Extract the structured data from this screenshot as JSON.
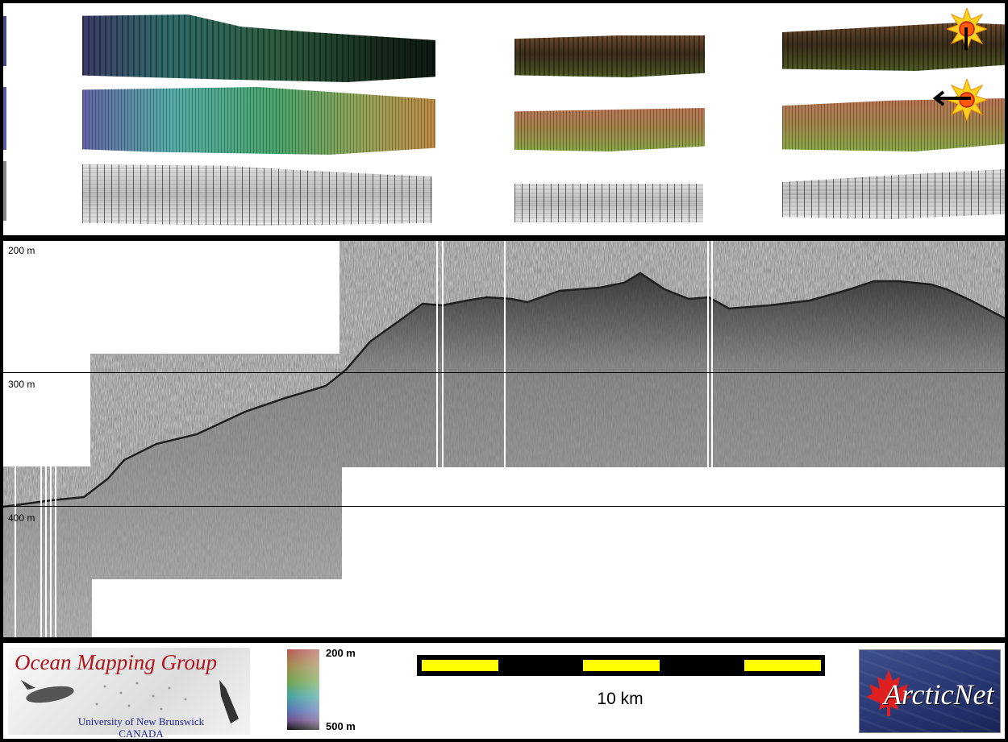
{
  "profile": {
    "depth_labels": [
      "200 m",
      "300 m",
      "400 m"
    ]
  },
  "legend": {
    "lab_name": "Ocean Mapping Group",
    "university": "University of New Brunswick",
    "country": "CANADA",
    "colorbar": {
      "top_label": "200 m",
      "bottom_label": "500 m"
    },
    "scale_label": "10 km",
    "network_name": "ArcticNet"
  },
  "colors": {
    "scalebar_fill": "#ffff00",
    "scalebar_frame": "#000000",
    "lab_name_color": "#b3121b",
    "university_color": "#1a1f8a",
    "network_bg": "#23306a"
  },
  "icons": [
    "sun-marker-icon",
    "arrow-left-icon",
    "maple-leaf-icon",
    "sonar-fish-icon"
  ]
}
